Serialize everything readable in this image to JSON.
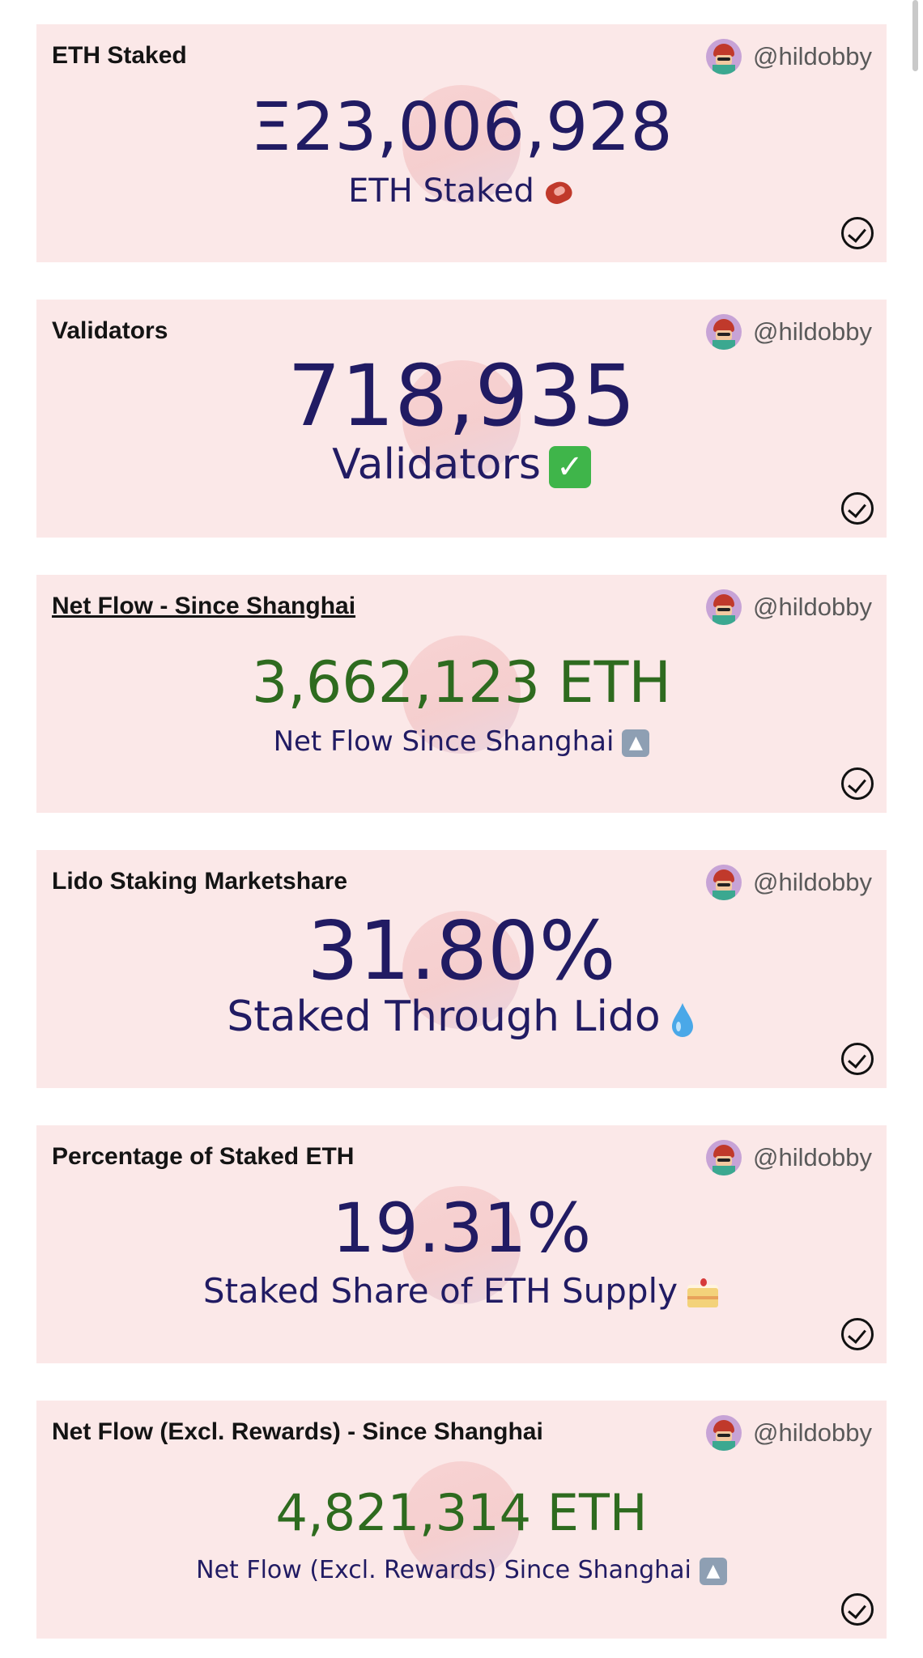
{
  "author": "@hildobby",
  "cards": [
    {
      "title": "ETH Staked",
      "value": "Ξ23,006,928",
      "subtitle": "ETH Staked",
      "emoji": "meat-icon"
    },
    {
      "title": "Validators",
      "value": "718,935",
      "subtitle": "Validators",
      "emoji": "check-mark-button-icon"
    },
    {
      "title": "Net Flow - Since Shanghai",
      "value": "3,662,123 ETH",
      "subtitle": "Net Flow Since Shanghai",
      "emoji": "up-arrow-icon"
    },
    {
      "title": "Lido Staking Marketshare",
      "value": "31.80%",
      "subtitle": "Staked Through Lido",
      "emoji": "droplet-icon"
    },
    {
      "title": "Percentage of Staked ETH",
      "value": "19.31%",
      "subtitle": "Staked Share of ETH Supply",
      "emoji": "cake-icon"
    },
    {
      "title": "Net Flow (Excl. Rewards) - Since Shanghai",
      "value": "4,821,314 ETH",
      "subtitle": "Net Flow (Excl. Rewards) Since Shanghai",
      "emoji": "up-arrow-icon"
    }
  ],
  "colors": {
    "card_bg": "#fbe8e8",
    "value_blue": "#211b63",
    "value_green": "#2e6b1f"
  }
}
